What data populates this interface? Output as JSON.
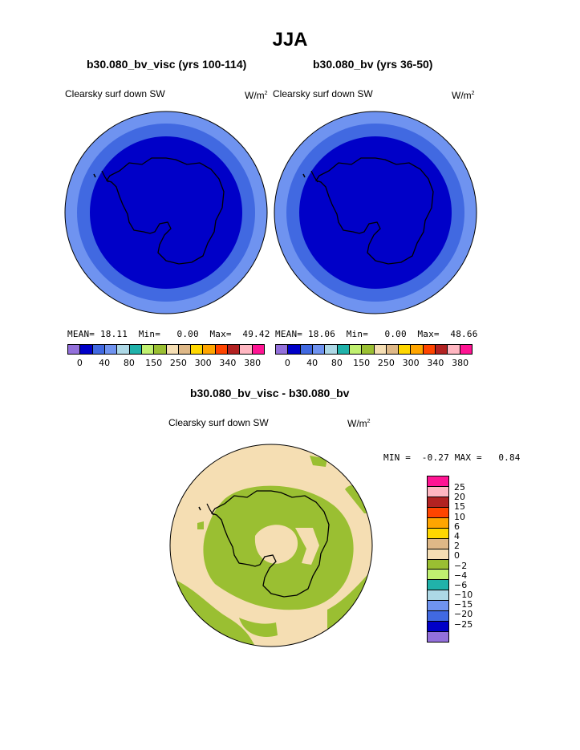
{
  "title": "JJA",
  "colors": {
    "ring_outer": "#6F93F0",
    "ring_mid": "#4169E1",
    "core": "#0000C8",
    "diff_land": "#F5DEB3",
    "diff_neg": "#9ABF32",
    "coast": "#000000"
  },
  "panels": [
    {
      "title": "b30.080_bv_visc (yrs 100-114)",
      "variable": "Clearsky surf down SW",
      "units_base": "W/m",
      "units_exp": "2",
      "mean_label": "MEAN=",
      "mean": "18.11",
      "min_label": "Min=",
      "min": "0.00",
      "max_label": "Max=",
      "max": "49.42"
    },
    {
      "title": "b30.080_bv (yrs 36-50)",
      "variable": "Clearsky surf down SW",
      "units_base": "W/m",
      "units_exp": "2",
      "mean_label": "MEAN=",
      "mean": "18.06",
      "min_label": "Min=",
      "min": "0.00",
      "max_label": "Max=",
      "max": "48.66"
    }
  ],
  "colorbar": {
    "colors": [
      "#9370DB",
      "#0000C8",
      "#4169E1",
      "#6F93F0",
      "#ADD8E6",
      "#20B2AA",
      "#C0F070",
      "#9ABF32",
      "#F5DEB3",
      "#DEB887",
      "#FFD700",
      "#FFA500",
      "#FF4500",
      "#B22222",
      "#FFB6C1",
      "#FF1493"
    ],
    "labels": [
      "0",
      "40",
      "80",
      "150",
      "250",
      "300",
      "340",
      "380"
    ]
  },
  "diff": {
    "title": "b30.080_bv_visc - b30.080_bv",
    "variable": "Clearsky surf down SW",
    "units_base": "W/m",
    "units_exp": "2",
    "min_label": "MIN =",
    "min": "-0.27",
    "max_label": "MAX =",
    "max": "0.84",
    "legend_colors": [
      "#FF1493",
      "#FFB6C1",
      "#B22222",
      "#FF4500",
      "#FFA500",
      "#FFD700",
      "#DEB887",
      "#F5DEB3",
      "#9ABF32",
      "#C0F070",
      "#20B2AA",
      "#ADD8E6",
      "#6F93F0",
      "#4169E1",
      "#0000C8",
      "#9370DB"
    ],
    "legend_labels": [
      "25",
      "20",
      "15",
      "10",
      "6",
      "4",
      "2",
      "0",
      "−2",
      "−4",
      "−6",
      "−10",
      "−15",
      "−20",
      "−25"
    ]
  }
}
